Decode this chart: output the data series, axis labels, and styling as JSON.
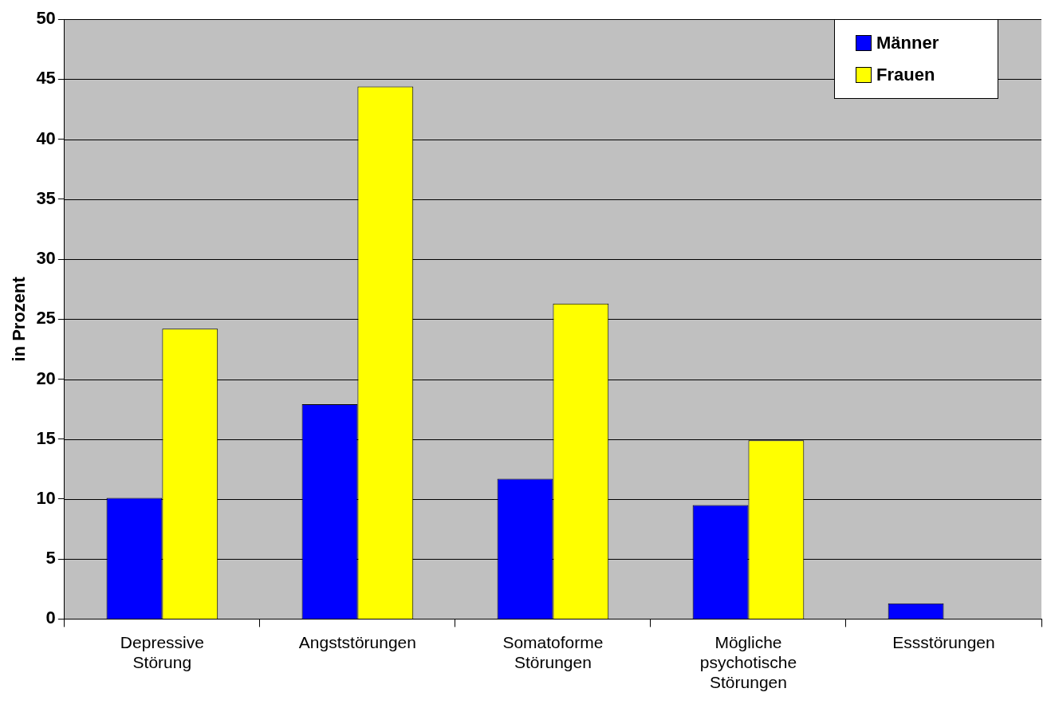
{
  "chart_data": {
    "type": "bar",
    "ylabel": "in Prozent",
    "categories": [
      "Depressive Störung",
      "Angststörungen",
      "Somatoforme Störungen",
      "Mögliche psychotische Störungen",
      "Essstörungen"
    ],
    "series": [
      {
        "name": "Männer",
        "color": "#0000ff",
        "values": [
          10.1,
          17.9,
          11.7,
          9.5,
          1.3
        ]
      },
      {
        "name": "Frauen",
        "color": "#ffff00",
        "values": [
          24.2,
          44.4,
          26.3,
          14.9,
          null
        ]
      }
    ],
    "ylim": [
      0,
      50
    ],
    "yticks": [
      0,
      5,
      10,
      15,
      20,
      25,
      30,
      35,
      40,
      45,
      50
    ],
    "grid": "y",
    "legend": "top right"
  }
}
